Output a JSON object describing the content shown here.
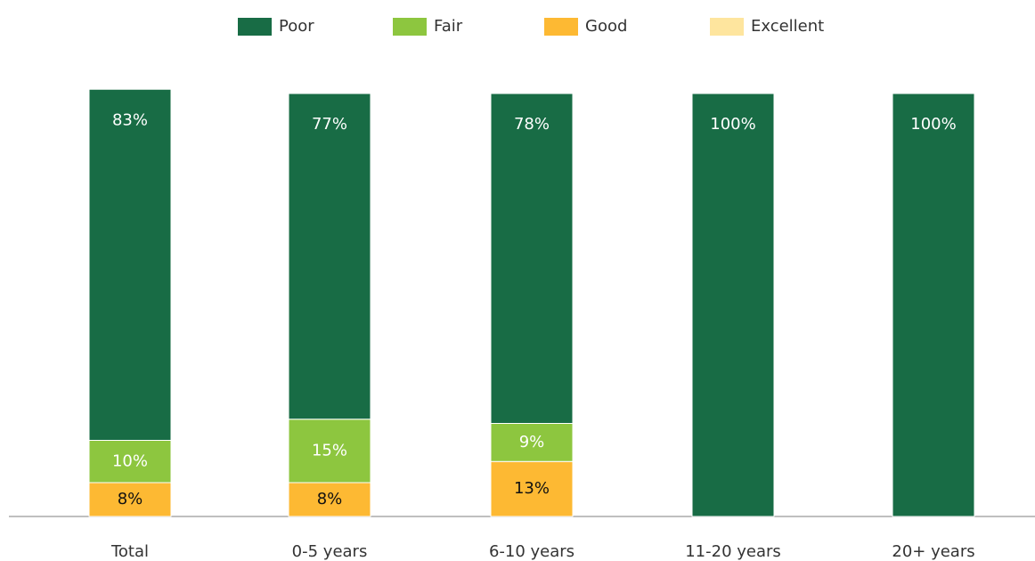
{
  "chart_data": {
    "type": "stacked_bar",
    "categories": [
      "Total",
      "0-5 years",
      "6-10 years",
      "11-20 years",
      "20+ years"
    ],
    "series": [
      {
        "name": "Poor",
        "color": "#186c45",
        "values": [
          83,
          77,
          78,
          100,
          100
        ],
        "value_labels": [
          "83%",
          "77%",
          "78%",
          "100%",
          "100%"
        ]
      },
      {
        "name": "Fair",
        "color": "#8dc63f",
        "values": [
          10,
          15,
          9,
          null,
          null
        ],
        "value_labels": [
          "10%",
          "15%",
          "9%",
          null,
          null
        ]
      },
      {
        "name": "Good",
        "color": "#fdb933",
        "values": [
          8,
          8,
          13,
          null,
          null
        ],
        "value_labels": [
          "8%",
          "8%",
          "13%",
          null,
          null
        ]
      },
      {
        "name": "Excellent",
        "color": "#fee59e",
        "values": [
          null,
          null,
          null,
          null,
          null
        ]
      }
    ],
    "ylim": [
      0,
      100
    ]
  }
}
